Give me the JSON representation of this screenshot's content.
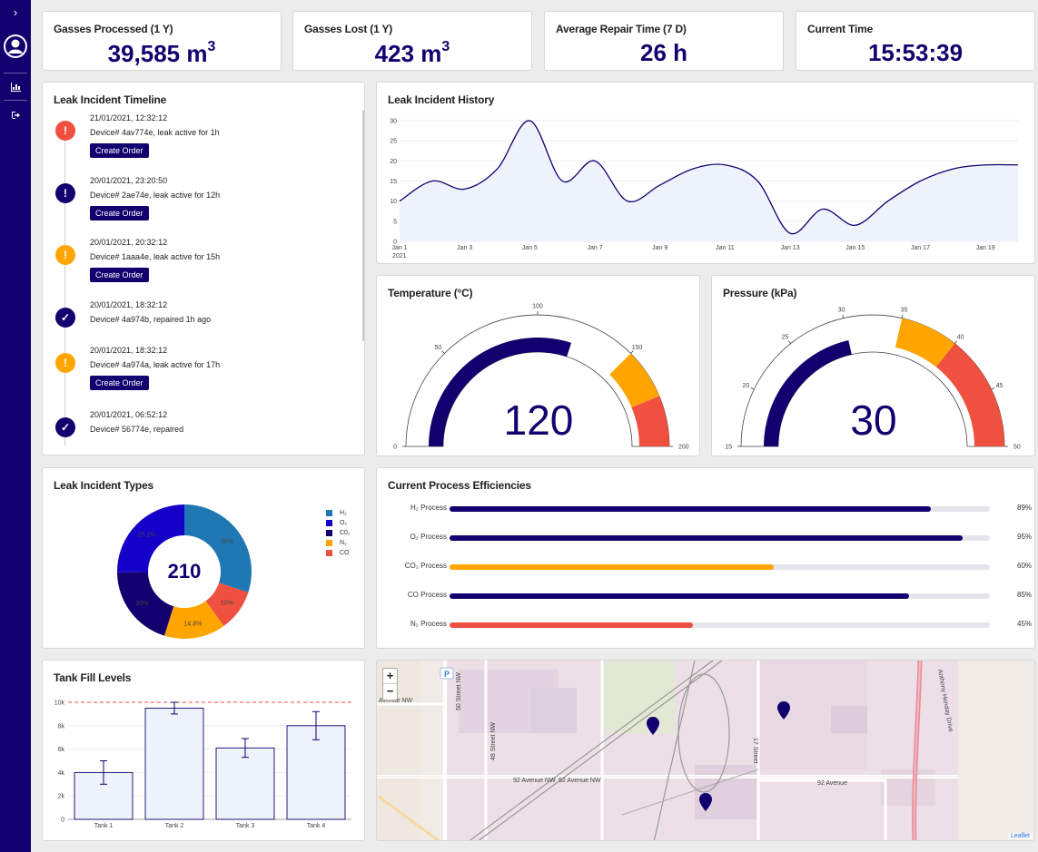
{
  "colors": {
    "primary": "#12006e",
    "orange": "#ffa500",
    "red": "#ef5040",
    "blue": "#1f77b4",
    "area": "#eef2fb"
  },
  "sidebar": {
    "toggle_icon": "chevron-right-icon",
    "avatar_icon": "user-avatar-icon",
    "dashboard_icon": "bar-chart-icon",
    "logout_icon": "logout-icon"
  },
  "kpis": [
    {
      "label": "Gasses Processed (1 Y)",
      "value": "39,585 m",
      "sup": "3"
    },
    {
      "label": "Gasses Lost (1 Y)",
      "value": "423 m",
      "sup": "3"
    },
    {
      "label": "Average Repair Time (7 D)",
      "value": "26 h",
      "sup": ""
    },
    {
      "label": "Current Time",
      "value": "15:53:39",
      "sup": ""
    }
  ],
  "timeline": {
    "title": "Leak Incident Timeline",
    "items": [
      {
        "date": "21/01/2021, 12:32:12",
        "desc": "Device# 4av774e, leak active for 1h",
        "status": "critical",
        "button": "Create Order"
      },
      {
        "date": "20/01/2021, 23:20:50",
        "desc": "Device# 2ae74e, leak active for 12h",
        "status": "major",
        "button": "Create Order"
      },
      {
        "date": "20/01/2021, 20:32:12",
        "desc": "Device# 1aaa4e, leak active for 15h",
        "status": "warning",
        "button": "Create Order"
      },
      {
        "date": "20/01/2021, 18:32:12",
        "desc": "Device# 4a974b, repaired 1h ago",
        "status": "repaired",
        "button": ""
      },
      {
        "date": "20/01/2021, 18:32:12",
        "desc": "Device# 4a974a, leak active for 17h",
        "status": "warning",
        "button": "Create Order"
      },
      {
        "date": "20/01/2021, 06:52:12",
        "desc": "Device# 56774e, repaired",
        "status": "repaired",
        "button": ""
      }
    ]
  },
  "history": {
    "title": "Leak Incident History",
    "chart_data": {
      "type": "area",
      "x": [
        1,
        2,
        3,
        4,
        5,
        6,
        7,
        8,
        9,
        10,
        11,
        12,
        13,
        14,
        15,
        16,
        17,
        18,
        19,
        20
      ],
      "values": [
        10,
        15,
        13,
        18,
        30,
        15,
        20,
        10,
        14,
        18,
        19,
        15,
        2,
        8,
        4,
        10,
        15,
        18,
        19,
        19
      ],
      "ylim": [
        0,
        30
      ],
      "yticks": [
        0,
        5,
        10,
        15,
        20,
        25,
        30
      ],
      "xtick_labels": [
        "Jan 1",
        "Jan 3",
        "Jan 5",
        "Jan 7",
        "Jan 9",
        "Jan 11",
        "Jan 13",
        "Jan 15",
        "Jan 17",
        "Jan 19"
      ],
      "xtick_days": [
        1,
        3,
        5,
        7,
        9,
        11,
        13,
        15,
        17,
        19
      ],
      "year_label": "2021",
      "xlim": [
        1,
        20
      ]
    }
  },
  "temperature": {
    "title": "Temperature (°C)",
    "value": "120",
    "gauge": {
      "min": 0,
      "max": 200,
      "value": 120,
      "warn_from": 150,
      "crit_from": 175,
      "ticks": [
        "0",
        "50",
        "100",
        "150",
        "200"
      ],
      "tick_values": [
        0,
        50,
        100,
        150,
        200
      ]
    }
  },
  "pressure": {
    "title": "Pressure (kPa)",
    "value": "30",
    "gauge": {
      "min": 15,
      "max": 50,
      "value": 30,
      "warn_from": 35,
      "crit_from": 40,
      "ticks": [
        "15",
        "20",
        "25",
        "30",
        "35",
        "40",
        "45",
        "50"
      ],
      "tick_values": [
        15,
        20,
        25,
        30,
        35,
        40,
        45,
        50
      ]
    }
  },
  "types": {
    "title": "Leak Incident Types",
    "total": "210",
    "chart_data": {
      "type": "pie",
      "labels": [
        "H₂",
        "CO",
        "N₂",
        "C0₂",
        "O₂"
      ],
      "values": [
        30,
        10,
        14.8,
        20,
        25.2
      ],
      "value_labels": [
        "30%",
        "10%",
        "14.8%",
        "20%",
        "25.2%"
      ],
      "colors": [
        "#1f77b4",
        "#ef5040",
        "#ffa500",
        "#12006e",
        "#1400c8"
      ]
    },
    "legend": [
      {
        "label": "H₂",
        "color": "#1f77b4"
      },
      {
        "label": "O₂",
        "color": "#1400c8"
      },
      {
        "label": "C0₂",
        "color": "#12006e"
      },
      {
        "label": "N₂",
        "color": "#ffa500"
      },
      {
        "label": "CO",
        "color": "#ef5040"
      }
    ]
  },
  "efficiency": {
    "title": "Current Process Efficiencies",
    "chart_data": {
      "type": "bar",
      "rows": [
        {
          "label": "H₂ Process",
          "value": 89,
          "pct": "89%",
          "color": "#12006e"
        },
        {
          "label": "O₂ Process",
          "value": 95,
          "pct": "95%",
          "color": "#12006e"
        },
        {
          "label": "CO₂ Process",
          "value": 60,
          "pct": "60%",
          "color": "#ffa500"
        },
        {
          "label": "CO Process",
          "value": 85,
          "pct": "85%",
          "color": "#12006e"
        },
        {
          "label": "N₂ Process",
          "value": 45,
          "pct": "45%",
          "color": "#ef5040"
        }
      ]
    }
  },
  "tanks": {
    "title": "Tank Fill Levels",
    "chart_data": {
      "type": "bar",
      "categories": [
        "Tank 1",
        "Tank 2",
        "Tank 3",
        "Tank 4"
      ],
      "values": [
        4000,
        9500,
        6100,
        8000
      ],
      "errors": [
        1000,
        500,
        800,
        1200
      ],
      "threshold": 10000,
      "ylim": [
        0,
        10000
      ],
      "yticks": [
        0,
        2000,
        4000,
        6000,
        8000,
        10000
      ],
      "ytick_labels": [
        "0",
        "2k",
        "4k",
        "6k",
        "8k",
        "10k"
      ]
    }
  },
  "map": {
    "zoom_in": "+",
    "zoom_out": "−",
    "attribution": "Leaflet",
    "parking_label": "P",
    "streets": [
      "92 Avenue NW",
      "92 Avenue NW",
      "92 Avenue",
      "Avenue NW",
      "Anthony Henday Drive",
      "17 Street",
      "50 Street NW",
      "48 Street NW"
    ],
    "marker_icon": "map-pin-icon"
  }
}
